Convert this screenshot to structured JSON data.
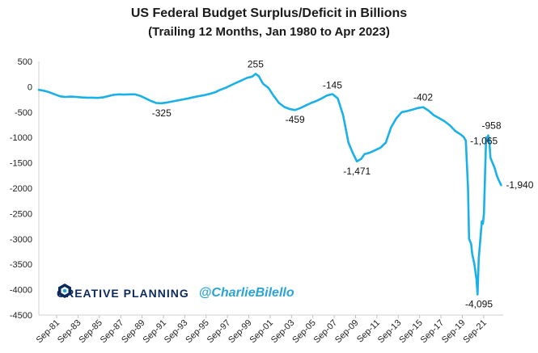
{
  "chart_data": {
    "type": "line",
    "title": "US Federal Budget Surplus/Deficit in Billions",
    "subtitle": "(Trailing  12 Months, Jan 1980 to Apr 2023)",
    "xlabel": "",
    "ylabel": "",
    "ylim": [
      -4500,
      500
    ],
    "yticks": [
      500,
      0,
      -500,
      -1000,
      -1500,
      -2000,
      -2500,
      -3000,
      -3500,
      -4000,
      -4500
    ],
    "xlim": [
      1980.0,
      2023.5
    ],
    "xtick_labels": [
      "Sep-81",
      "Sep-83",
      "Sep-85",
      "Sep-87",
      "Sep-89",
      "Sep-91",
      "Sep-93",
      "Sep-95",
      "Sep-97",
      "Sep-99",
      "Sep-01",
      "Sep-03",
      "Sep-05",
      "Sep-07",
      "Sep-09",
      "Sep-11",
      "Sep-13",
      "Sep-15",
      "Sep-17",
      "Sep-19",
      "Sep-21"
    ],
    "xtick_values": [
      1981.67,
      1983.67,
      1985.67,
      1987.67,
      1989.67,
      1991.67,
      1993.67,
      1995.67,
      1997.67,
      1999.67,
      2001.67,
      2003.67,
      2005.67,
      2007.67,
      2009.67,
      2011.67,
      2013.67,
      2015.67,
      2017.67,
      2019.67,
      2021.67
    ],
    "grid": false,
    "series": [
      {
        "color": "#1ab0e8",
        "x": [
          1980.0,
          1980.5,
          1981.0,
          1981.5,
          1982.0,
          1982.5,
          1983.0,
          1983.5,
          1984.0,
          1984.5,
          1985.0,
          1985.5,
          1986.0,
          1986.5,
          1987.0,
          1987.5,
          1988.0,
          1988.5,
          1989.0,
          1989.5,
          1990.0,
          1990.5,
          1991.0,
          1991.5,
          1992.0,
          1992.5,
          1993.0,
          1993.5,
          1994.0,
          1994.5,
          1995.0,
          1995.5,
          1996.0,
          1996.5,
          1997.0,
          1997.5,
          1998.0,
          1998.5,
          1999.0,
          1999.5,
          2000.0,
          2000.3,
          2000.6,
          2001.0,
          2001.5,
          2002.0,
          2002.5,
          2003.0,
          2003.5,
          2004.0,
          2004.5,
          2005.0,
          2005.5,
          2006.0,
          2006.5,
          2007.0,
          2007.5,
          2008.0,
          2008.5,
          2009.0,
          2009.4,
          2009.8,
          2010.2,
          2010.5,
          2011.0,
          2011.5,
          2012.0,
          2012.5,
          2013.0,
          2013.5,
          2014.0,
          2014.5,
          2015.0,
          2015.5,
          2016.0,
          2016.5,
          2017.0,
          2017.5,
          2018.0,
          2018.5,
          2019.0,
          2019.5,
          2019.8,
          2020.0,
          2020.2,
          2020.3,
          2020.4,
          2020.5,
          2020.6,
          2020.8,
          2021.0,
          2021.1,
          2021.2,
          2021.4,
          2021.5,
          2021.6,
          2021.7,
          2021.8,
          2021.9,
          2022.0,
          2022.1,
          2022.2,
          2022.3,
          2022.5,
          2022.7,
          2022.9,
          2023.1,
          2023.3
        ],
        "y": [
          -60,
          -80,
          -110,
          -150,
          -190,
          -200,
          -195,
          -200,
          -210,
          -215,
          -215,
          -220,
          -210,
          -185,
          -160,
          -150,
          -155,
          -150,
          -150,
          -180,
          -230,
          -280,
          -320,
          -325,
          -310,
          -290,
          -270,
          -250,
          -230,
          -205,
          -185,
          -165,
          -140,
          -110,
          -60,
          -20,
          30,
          80,
          125,
          175,
          200,
          255,
          210,
          60,
          -20,
          -180,
          -320,
          -400,
          -440,
          -459,
          -420,
          -370,
          -320,
          -280,
          -230,
          -170,
          -145,
          -230,
          -560,
          -1100,
          -1300,
          -1471,
          -1420,
          -1330,
          -1300,
          -1250,
          -1200,
          -1100,
          -800,
          -620,
          -500,
          -480,
          -450,
          -420,
          -402,
          -470,
          -560,
          -620,
          -680,
          -760,
          -870,
          -940,
          -990,
          -1065,
          -2000,
          -3000,
          -3050,
          -3100,
          -3300,
          -3500,
          -3800,
          -4095,
          -3400,
          -2900,
          -2650,
          -2700,
          -2500,
          -1700,
          -1000,
          -1065,
          -958,
          -1050,
          -1400,
          -1500,
          -1600,
          -1750,
          -1850,
          -1940
        ]
      }
    ],
    "annotations": [
      {
        "x": 1991.5,
        "y": -325,
        "text": "-325"
      },
      {
        "x": 2000.3,
        "y": 255,
        "text": "255"
      },
      {
        "x": 2004.0,
        "y": -459,
        "text": "-459"
      },
      {
        "x": 2007.5,
        "y": -145,
        "text": "-145"
      },
      {
        "x": 2009.8,
        "y": -1471,
        "text": "-1,471"
      },
      {
        "x": 2016.0,
        "y": -402,
        "text": "-402"
      },
      {
        "x": 2019.8,
        "y": -1065,
        "text": "-1,065"
      },
      {
        "x": 2021.0,
        "y": -4095,
        "text": "-4,095"
      },
      {
        "x": 2022.1,
        "y": -958,
        "text": "-958"
      },
      {
        "x": 2023.3,
        "y": -1940,
        "text": "-1,940"
      }
    ]
  },
  "watermark": {
    "brand": "CREATIVE PLANNING",
    "handle": "@CharlieBilello"
  }
}
